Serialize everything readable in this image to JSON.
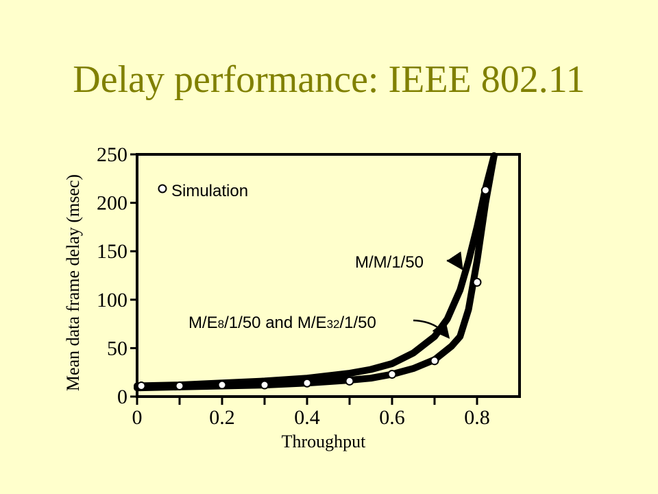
{
  "slide": {
    "title": "Delay performance: IEEE 802.11"
  },
  "chart_data": {
    "type": "line",
    "xlabel": "Throughput",
    "ylabel": "Mean data frame delay (msec)",
    "xlim": [
      0,
      0.9
    ],
    "ylim": [
      0,
      250
    ],
    "x_ticks": [
      0,
      0.2,
      0.4,
      0.6,
      0.8
    ],
    "x_minor_ticks": [
      0.1,
      0.3,
      0.5,
      0.7
    ],
    "y_ticks": [
      0,
      50,
      100,
      150,
      200,
      250
    ],
    "grid": false,
    "series": [
      {
        "name": "M/M/1/50",
        "style": "thick-line",
        "x": [
          0,
          0.1,
          0.2,
          0.3,
          0.4,
          0.5,
          0.55,
          0.6,
          0.65,
          0.7,
          0.73,
          0.76,
          0.78,
          0.8,
          0.82,
          0.84
        ],
        "y": [
          11,
          12,
          14,
          16,
          19,
          24,
          28,
          34,
          45,
          62,
          80,
          110,
          140,
          175,
          215,
          255
        ]
      },
      {
        "name": "M/E8/1/50 and M/E32/1/50",
        "style": "thick-line",
        "x": [
          0,
          0.1,
          0.2,
          0.3,
          0.4,
          0.5,
          0.55,
          0.6,
          0.65,
          0.7,
          0.74,
          0.76,
          0.78,
          0.8,
          0.82,
          0.84
        ],
        "y": [
          9,
          10,
          11,
          12,
          14,
          17,
          19,
          23,
          29,
          38,
          52,
          62,
          90,
          140,
          200,
          255
        ]
      },
      {
        "name": "Simulation",
        "style": "markers",
        "x": [
          0.01,
          0.1,
          0.2,
          0.3,
          0.4,
          0.5,
          0.6,
          0.7,
          0.8,
          0.82
        ],
        "y": [
          11,
          11,
          12,
          12,
          14,
          16,
          23,
          37,
          118,
          213
        ]
      }
    ],
    "legend": {
      "label": "Simulation",
      "position": "top-left"
    },
    "annotations": [
      {
        "text": "M/M/1/50",
        "target_series": "M/M/1/50"
      },
      {
        "parts": [
          "M/E",
          "8",
          "/1/50 and M/E",
          "32",
          "/1/50"
        ],
        "target_series": "M/E8/1/50 and M/E32/1/50"
      }
    ]
  }
}
